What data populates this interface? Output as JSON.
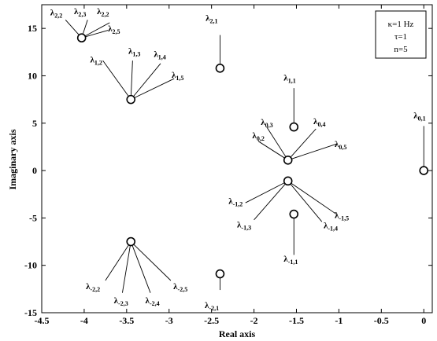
{
  "chart_data": {
    "type": "scatter",
    "title": "",
    "xlabel": "Real axis",
    "ylabel": "Imaginary axis",
    "xlim": [
      -4.5,
      0.1
    ],
    "ylim": [
      -15,
      17.5
    ],
    "xticks": [
      "-4.5",
      "-4",
      "-3.5",
      "-3",
      "-2.5",
      "-2",
      "-1.5",
      "-1",
      "-0.5",
      "0"
    ],
    "xtick_values": [
      -4.5,
      -4,
      -3.5,
      -3,
      -2.5,
      -2,
      -1.5,
      -1,
      -0.5,
      0
    ],
    "yticks": [
      "15",
      "10",
      "5",
      "0",
      "-5",
      "-10",
      "-15"
    ],
    "ytick_values": [
      15,
      10,
      5,
      0,
      -5,
      -10,
      -15
    ],
    "grid": false,
    "marker": "open-circle",
    "legend": {
      "placement": "top-right",
      "lines": [
        "κ=1 Hz",
        "τ=1",
        "n=5"
      ]
    },
    "points": [
      {
        "x": -4.03,
        "y": 14.0
      },
      {
        "x": -3.45,
        "y": 7.5
      },
      {
        "x": -2.4,
        "y": 10.8
      },
      {
        "x": -1.53,
        "y": 4.6
      },
      {
        "x": -1.6,
        "y": 1.1
      },
      {
        "x": 0.0,
        "y": 0.0
      },
      {
        "x": -1.6,
        "y": -1.1
      },
      {
        "x": -1.53,
        "y": -4.6
      },
      {
        "x": -3.45,
        "y": -7.5
      },
      {
        "x": -2.4,
        "y": -10.9
      }
    ],
    "annotations": [
      {
        "main": "λ",
        "sub": "2,2",
        "label_x": -4.4,
        "label_y": 16.4,
        "point": 0
      },
      {
        "main": "λ",
        "sub": "2,3",
        "label_x": -4.12,
        "label_y": 16.5,
        "point": 0
      },
      {
        "main": "λ",
        "sub": "2,2",
        "label_x": -3.85,
        "label_y": 16.5,
        "point": 0
      },
      {
        "main": "λ",
        "sub": "2,5",
        "label_x": -3.72,
        "label_y": 14.7,
        "point": 0
      },
      {
        "main": "λ",
        "sub": "1,2",
        "label_x": -3.93,
        "label_y": 11.4,
        "point": 1
      },
      {
        "main": "λ",
        "sub": "1,3",
        "label_x": -3.48,
        "label_y": 12.3,
        "point": 1
      },
      {
        "main": "λ",
        "sub": "1,4",
        "label_x": -3.18,
        "label_y": 12.0,
        "point": 1
      },
      {
        "main": "λ",
        "sub": "1,5",
        "label_x": -2.97,
        "label_y": 9.8,
        "point": 1
      },
      {
        "main": "λ",
        "sub": "2,1",
        "label_x": -2.57,
        "label_y": 15.8,
        "point": 2
      },
      {
        "main": "λ",
        "sub": "1,1",
        "label_x": -1.65,
        "label_y": 9.5,
        "point": 3
      },
      {
        "main": "λ",
        "sub": "0,3",
        "label_x": -1.92,
        "label_y": 4.8,
        "point": 4
      },
      {
        "main": "λ",
        "sub": "0,2",
        "label_x": -2.02,
        "label_y": 3.4,
        "point": 4
      },
      {
        "main": "λ",
        "sub": "0,4",
        "label_x": -1.3,
        "label_y": 4.9,
        "point": 4
      },
      {
        "main": "λ",
        "sub": "0,5",
        "label_x": -1.05,
        "label_y": 2.5,
        "point": 4
      },
      {
        "main": "λ",
        "sub": "0,1",
        "label_x": -0.12,
        "label_y": 5.5,
        "point": 5
      },
      {
        "main": "λ",
        "sub": "-1,2",
        "label_x": -2.3,
        "label_y": -3.5,
        "point": 6
      },
      {
        "main": "λ",
        "sub": "-1,3",
        "label_x": -2.2,
        "label_y": -6.0,
        "point": 6
      },
      {
        "main": "λ",
        "sub": "-1,5",
        "label_x": -1.05,
        "label_y": -5.0,
        "point": 6
      },
      {
        "main": "λ",
        "sub": "-1,4",
        "label_x": -1.18,
        "label_y": -6.1,
        "point": 6
      },
      {
        "main": "λ",
        "sub": "-1,1",
        "label_x": -1.65,
        "label_y": -9.6,
        "point": 7
      },
      {
        "main": "λ",
        "sub": "-2,2",
        "label_x": -3.98,
        "label_y": -12.5,
        "point": 8
      },
      {
        "main": "λ",
        "sub": "-2,3",
        "label_x": -3.65,
        "label_y": -14.0,
        "point": 8
      },
      {
        "main": "λ",
        "sub": "-2,4",
        "label_x": -3.28,
        "label_y": -14.0,
        "point": 8
      },
      {
        "main": "λ",
        "sub": "-2,5",
        "label_x": -2.95,
        "label_y": -12.5,
        "point": 8
      },
      {
        "main": "λ",
        "sub": "-2,1",
        "label_x": -2.58,
        "label_y": -14.5,
        "point": 9
      }
    ],
    "leaders": [
      {
        "point": 0,
        "to_x": -4.22,
        "to_y": 15.9
      },
      {
        "point": 0,
        "to_x": -3.96,
        "to_y": 15.9
      },
      {
        "point": 0,
        "to_x": -3.7,
        "to_y": 15.6
      },
      {
        "point": 0,
        "to_x": -3.72,
        "to_y": 14.8
      },
      {
        "point": 1,
        "to_x": -3.78,
        "to_y": 11.6
      },
      {
        "point": 1,
        "to_x": -3.43,
        "to_y": 11.6
      },
      {
        "point": 1,
        "to_x": -3.1,
        "to_y": 11.3
      },
      {
        "point": 1,
        "to_x": -2.94,
        "to_y": 9.7
      },
      {
        "point": 2,
        "to_x": -2.4,
        "to_y": 14.3
      },
      {
        "point": 3,
        "to_x": -1.53,
        "to_y": 8.7
      },
      {
        "point": 4,
        "to_x": -1.85,
        "to_y": 4.6
      },
      {
        "point": 4,
        "to_x": -1.95,
        "to_y": 3.1
      },
      {
        "point": 4,
        "to_x": -1.27,
        "to_y": 4.4
      },
      {
        "point": 4,
        "to_x": -1.03,
        "to_y": 2.8
      },
      {
        "point": 5,
        "to_x": 0.0,
        "to_y": 4.7
      },
      {
        "point": 6,
        "to_x": -2.1,
        "to_y": -3.4
      },
      {
        "point": 6,
        "to_x": -2.0,
        "to_y": -5.2
      },
      {
        "point": 6,
        "to_x": -1.03,
        "to_y": -4.6
      },
      {
        "point": 6,
        "to_x": -1.2,
        "to_y": -5.4
      },
      {
        "point": 7,
        "to_x": -1.53,
        "to_y": -8.9
      },
      {
        "point": 8,
        "to_x": -3.75,
        "to_y": -11.6
      },
      {
        "point": 8,
        "to_x": -3.55,
        "to_y": -12.9
      },
      {
        "point": 8,
        "to_x": -3.22,
        "to_y": -12.9
      },
      {
        "point": 8,
        "to_x": -2.98,
        "to_y": -11.6
      },
      {
        "point": 9,
        "to_x": -2.4,
        "to_y": -12.6
      }
    ]
  }
}
